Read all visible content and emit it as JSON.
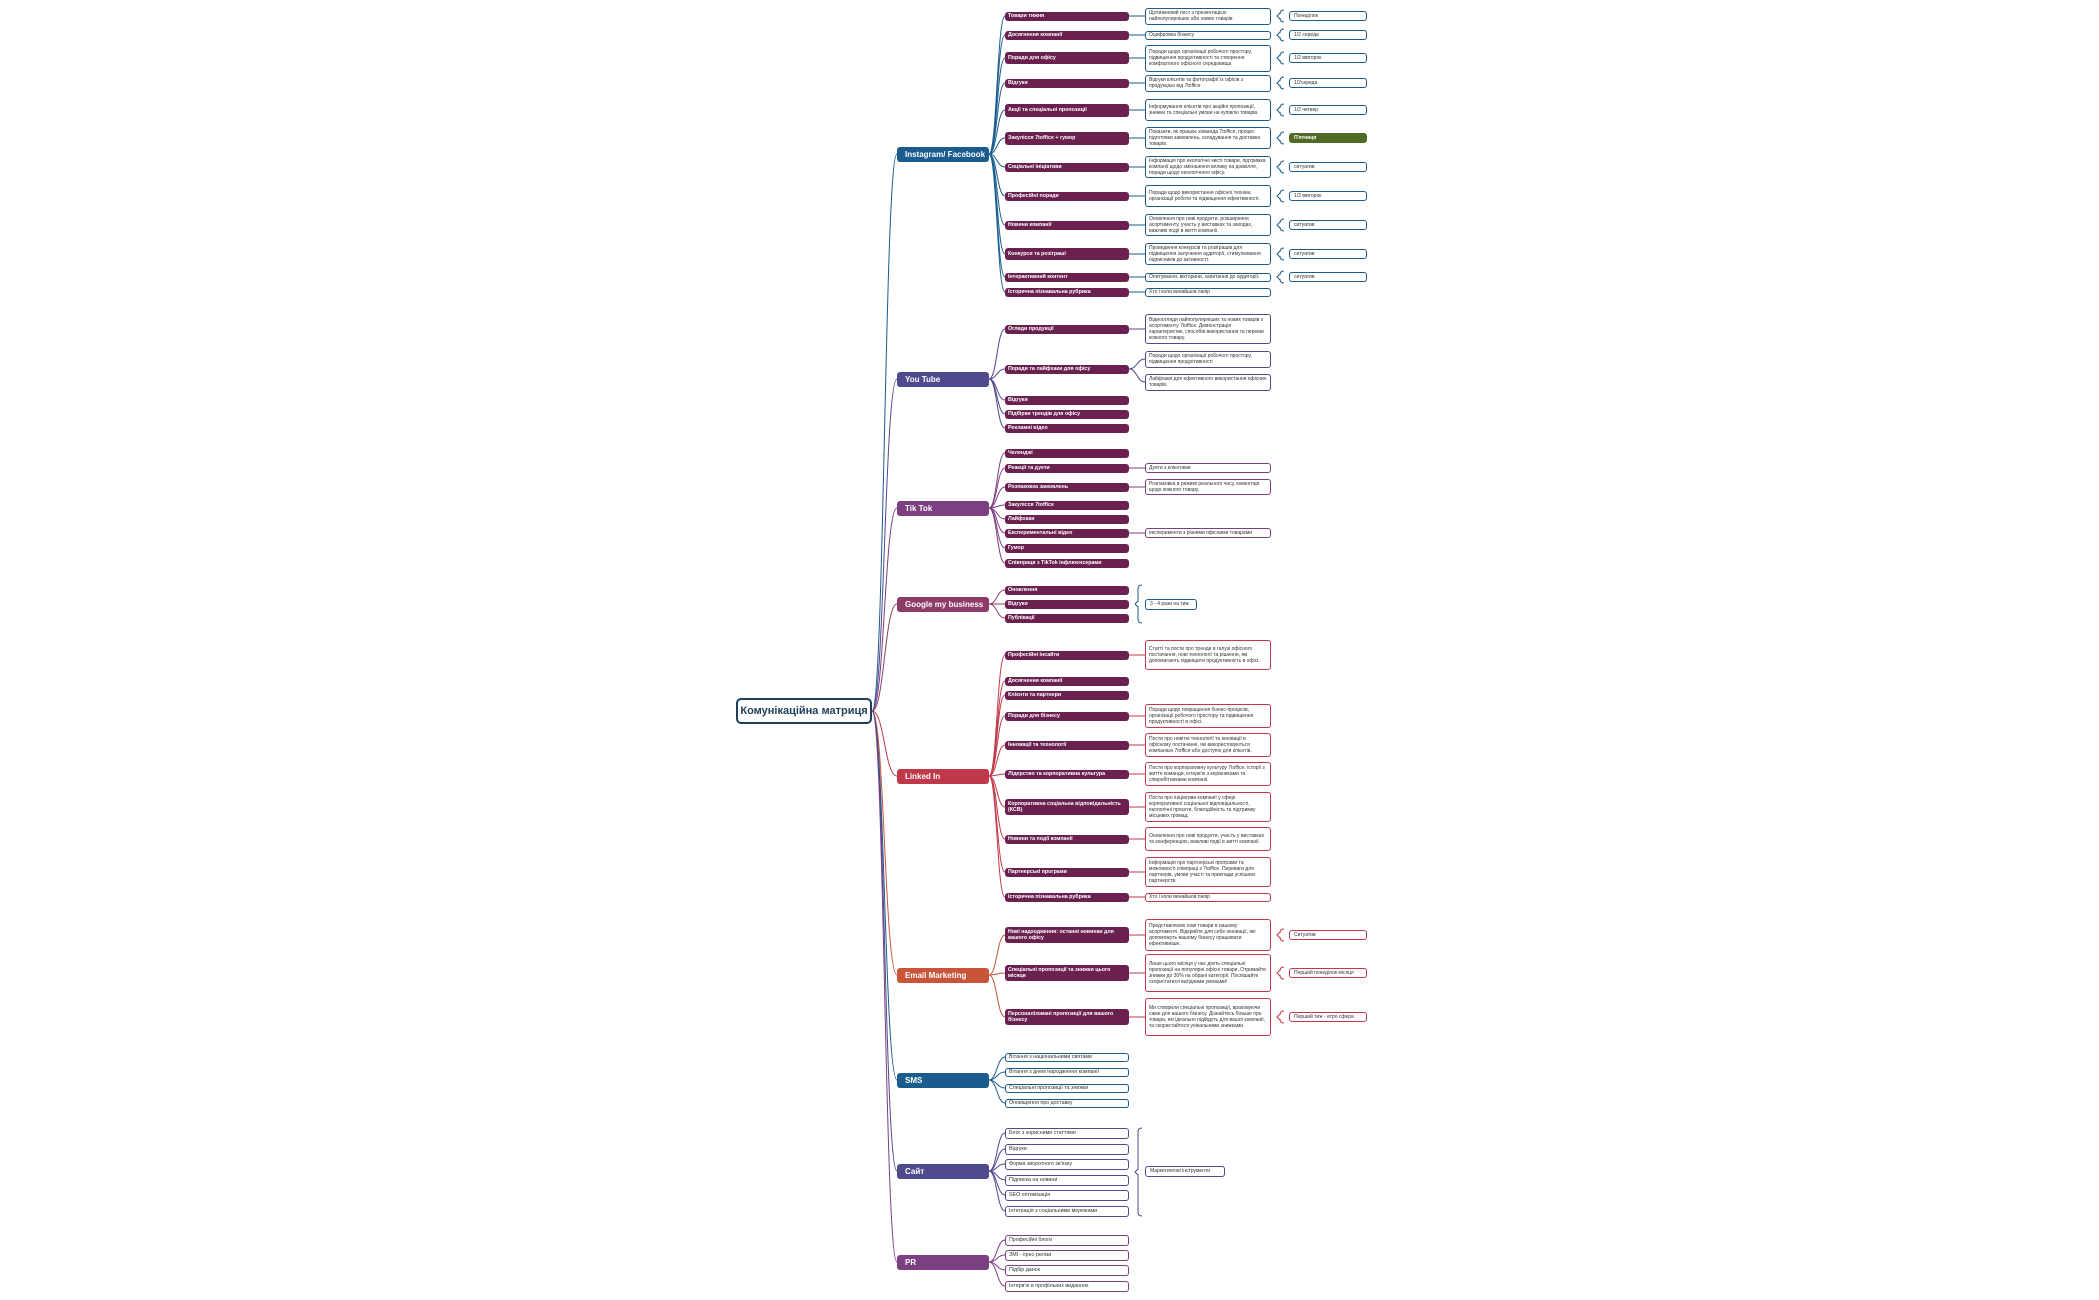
{
  "colors": {
    "root": "#1f3f5a",
    "instagram": "#1a5c8e",
    "youtube": "#4f4a8e",
    "tiktok": "#7b3f82",
    "google": "#8e3b68",
    "linkedin": "#c0394b",
    "email": "#c8553a",
    "sms": "#1a5c8e",
    "site": "#4f4a8e",
    "pr": "#7b3f82",
    "topic_fill": "#6b2150",
    "freq_highlight": "#4f6b23"
  },
  "root": {
    "label": "Комунікаційна матриця"
  },
  "channels": [
    {
      "id": "instagram",
      "label": "Instagram/ Facebook",
      "color": "#1a5c8e",
      "desc_color": "#1a5c8e",
      "topics": [
        {
          "label": "Товари тижня",
          "desc": "Щотижневий пост з презентацією найпопулярніших або нових товарів",
          "freq": "Понеділок"
        },
        {
          "label": "Досягнення компанії",
          "desc": "Оцифровка бізнесу",
          "freq": "1/2 середа"
        },
        {
          "label": "Поради для офісу",
          "desc": "Поради щодо організації робочого простору, підвищення продуктивності та створення комфортного офісного середовища",
          "freq": "1/2 вівторок"
        },
        {
          "label": "Відгуки",
          "desc": "Відгуки клієнтів та фотографії їх офісів з продукцією від 7toffice",
          "freq": "1/2середа"
        },
        {
          "label": "Акції та спеціальні пропозиції",
          "desc": "Інформування клієнтів про акційні пропозиції, знижки та спеціальні умови на купівлю товарів.",
          "freq": "1/2 четвер"
        },
        {
          "label": "Закулісся 7toffice + гумор",
          "desc": "Показати, як працює команда 7toffice, процес підготовки замовлень, складування та доставка товарів.",
          "freq": "П'ятниця",
          "freq_filled": true
        },
        {
          "label": "Соціальні ініціативи",
          "desc": "Інформація про екологічні чисті товари, підтримка компанії щодо зменшення впливу на довкілля, поради щодо екологічного офісу.",
          "freq": "ситуатив"
        },
        {
          "label": "Професійні поради",
          "desc": "Поради щодо використання офісної техніки, організації роботи та підвищення ефективності.",
          "freq": "1/2 вівторок"
        },
        {
          "label": "Новини компанії",
          "desc": "Оновлення про нові продукти, розширення асортименту, участь у виставках та заходах, важливі події в житті компанії.",
          "freq": "ситуатив"
        },
        {
          "label": "Конкурси та розіграші",
          "desc": "Проведення конкурсів та розіграшів для підвищення залучення аудиторії, стимулювання підписників до активності.",
          "freq": "ситуатив"
        },
        {
          "label": "Інтерактивний контент",
          "desc": "Опитування, вікторини, запитання до аудиторії.",
          "freq": "ситуатив"
        },
        {
          "label": "Історична пізнавальна рубрика",
          "desc": "Хто і коли винайшов папір",
          "freq": ""
        }
      ]
    },
    {
      "id": "youtube",
      "label": "You Tube",
      "color": "#4f4a8e",
      "desc_color": "#4f4a8e",
      "topics": [
        {
          "label": "Огляди продукції",
          "desc": " Відеоогляди найпопулярніших та нових товарів з асортименту 7toffice. Демонстрація характеристик, способів використання та переваг кожного товару."
        },
        {
          "label": "Поради та лайфхаки для офісу",
          "descs": [
            "Поради щодо організації робочого простору, підвищення продуктивності",
            "Лайфхаки для ефективного використання офісних товарів."
          ]
        },
        {
          "label": "Відгуки"
        },
        {
          "label": "Підбірки трендів для офісу"
        },
        {
          "label": "Рекламні відео"
        }
      ]
    },
    {
      "id": "tiktok",
      "label": "Tik Tok",
      "color": "#7b3f82",
      "desc_color": "#7b3f82",
      "topics": [
        {
          "label": "Челенджі"
        },
        {
          "label": "Реакції та дуети",
          "desc": "Дуети з клієнтами"
        },
        {
          "label": "Розпаковка замовлень",
          "desc": "Розпаковка в режимі реального часу, коментарі щодо кожного товару."
        },
        {
          "label": "Закулісся 7toffice"
        },
        {
          "label": "Лайфхаки"
        },
        {
          "label": "Експериментальні відео",
          "desc": "експерименти з різними офісними товарами"
        },
        {
          "label": "Гумор"
        },
        {
          "label": "Співпраця з TikTok інфлюенсерами"
        }
      ]
    },
    {
      "id": "google",
      "label": "Google my business",
      "color": "#8e3b68",
      "desc_color": "#1a5c8e",
      "topics": [
        {
          "label": "Оновлення"
        },
        {
          "label": "Відгуки"
        },
        {
          "label": "Публікації"
        }
      ],
      "group_desc": "3 - 4 рази на тиж"
    },
    {
      "id": "linkedin",
      "label": "Linked In",
      "color": "#c0394b",
      "desc_color": "#c0394b",
      "topics": [
        {
          "label": "Професійні інсайти",
          "desc": "Статті та пости про тренди в галузі офісного постачання, нові технології та рішення, які допомагають підвищити продуктивність в офісі."
        },
        {
          "label": "Досягнення компанії"
        },
        {
          "label": "Клієнти та партнери"
        },
        {
          "label": "Поради для бізнесу",
          "desc": "Поради щодо покращення бізнес-процесів, організації робочого простору та підвищення продуктивності в офісі."
        },
        {
          "label": "Інновації та технології",
          "desc": "Пости про новітні технології та інновації в офісному постачанні, які використовуються компанією 7toffice або доступні для клієнтів."
        },
        {
          "label": "Лідерство та корпоративна культура",
          "desc": "Пости про корпоративну культуру 7toffice, історії з життя команди, інтерв'ю з керівниками та співробітниками компанії."
        },
        {
          "label": "Корпоративна соціальна відповідальність (КСВ)",
          "desc": " Пости про ініціативи компанії у сфері корпоративної соціальної відповідальності, екологічні проєкти, благодійність та підтримку місцевих громад."
        },
        {
          "label": "Новини та події компанії",
          "desc": "Оновлення про нові продукти, участь у виставках та конференціях, важливі події в житті компанії."
        },
        {
          "label": "Партнерські програми",
          "desc": "Інформація про партнерські програми та можливості співпраці з 7toffice. Переваги для партнерів, умови участі та приклади успішних партнерств."
        },
        {
          "label": "Історична пізнавальна рубрика",
          "desc": "Хто і коли винайшов папір"
        }
      ]
    },
    {
      "id": "email",
      "label": "Email Marketing",
      "color": "#c8553a",
      "desc_color": "#c0394b",
      "topics": [
        {
          "label": "Нові надходження: останні новинки для вашого офісу",
          "desc": "Представляємо нові товари в нашому асортименті. Відкрийте для себе інновації, які допоможуть вашому бізнесу працювати ефективніше.",
          "freq": "Ситуатив"
        },
        {
          "label": "Спеціальні пропозиції та знижки цього місяця",
          "desc": "Лише цього місяця у нас діють спеціальні пропозиції на популярні офісні товари. Отримайте знижки до 30% на обрані категорії. Поспішайте скористатися вигідними умовами!",
          "freq": "Перший понеділок  місяця"
        },
        {
          "label": "Персоналізовані пропозиції для вашого бізнесу",
          "desc": "Ми створили спеціальні пропозиції, враховуючи саме для вашого бізнесу. Дізнайтесь більше про товари, які ідеально підійдуть для вашої компанії, та скористайтеся унікальними знижками.",
          "freq": "Перший тиж - етро сфера"
        }
      ]
    },
    {
      "id": "sms",
      "label": "SMS",
      "color": "#1a5c8e",
      "desc_color": "#1a5c8e",
      "topics": [
        {
          "label": "Вітання з національними святами"
        },
        {
          "label": "Вітання з днем народження компанії"
        },
        {
          "label": "Спеціальні пропозиції та знижки"
        },
        {
          "label": "Оповіщення про доставку"
        }
      ]
    },
    {
      "id": "site",
      "label": "Сайт",
      "color": "#4f4a8e",
      "desc_color": "#4f4a8e",
      "topics": [
        {
          "label": "Блог з корисними статтями"
        },
        {
          "label": "Відгуки"
        },
        {
          "label": "Форма зворотного зв'язку"
        },
        {
          "label": "Підписка на новини"
        },
        {
          "label": "SEO оптимізація"
        },
        {
          "label": "Інтеграція з соціальними мережами"
        }
      ],
      "group_desc": "Маркетингові інструменти"
    },
    {
      "id": "pr",
      "label": "PR",
      "color": "#7b3f82",
      "desc_color": "#7b3f82",
      "topics": [
        {
          "label": "Професійні блоги"
        },
        {
          "label": "ЗМІ - прес-релізи"
        },
        {
          "label": "Підбір данок"
        },
        {
          "label": "Інтерв'ю в профільних виданнях"
        }
      ]
    }
  ]
}
